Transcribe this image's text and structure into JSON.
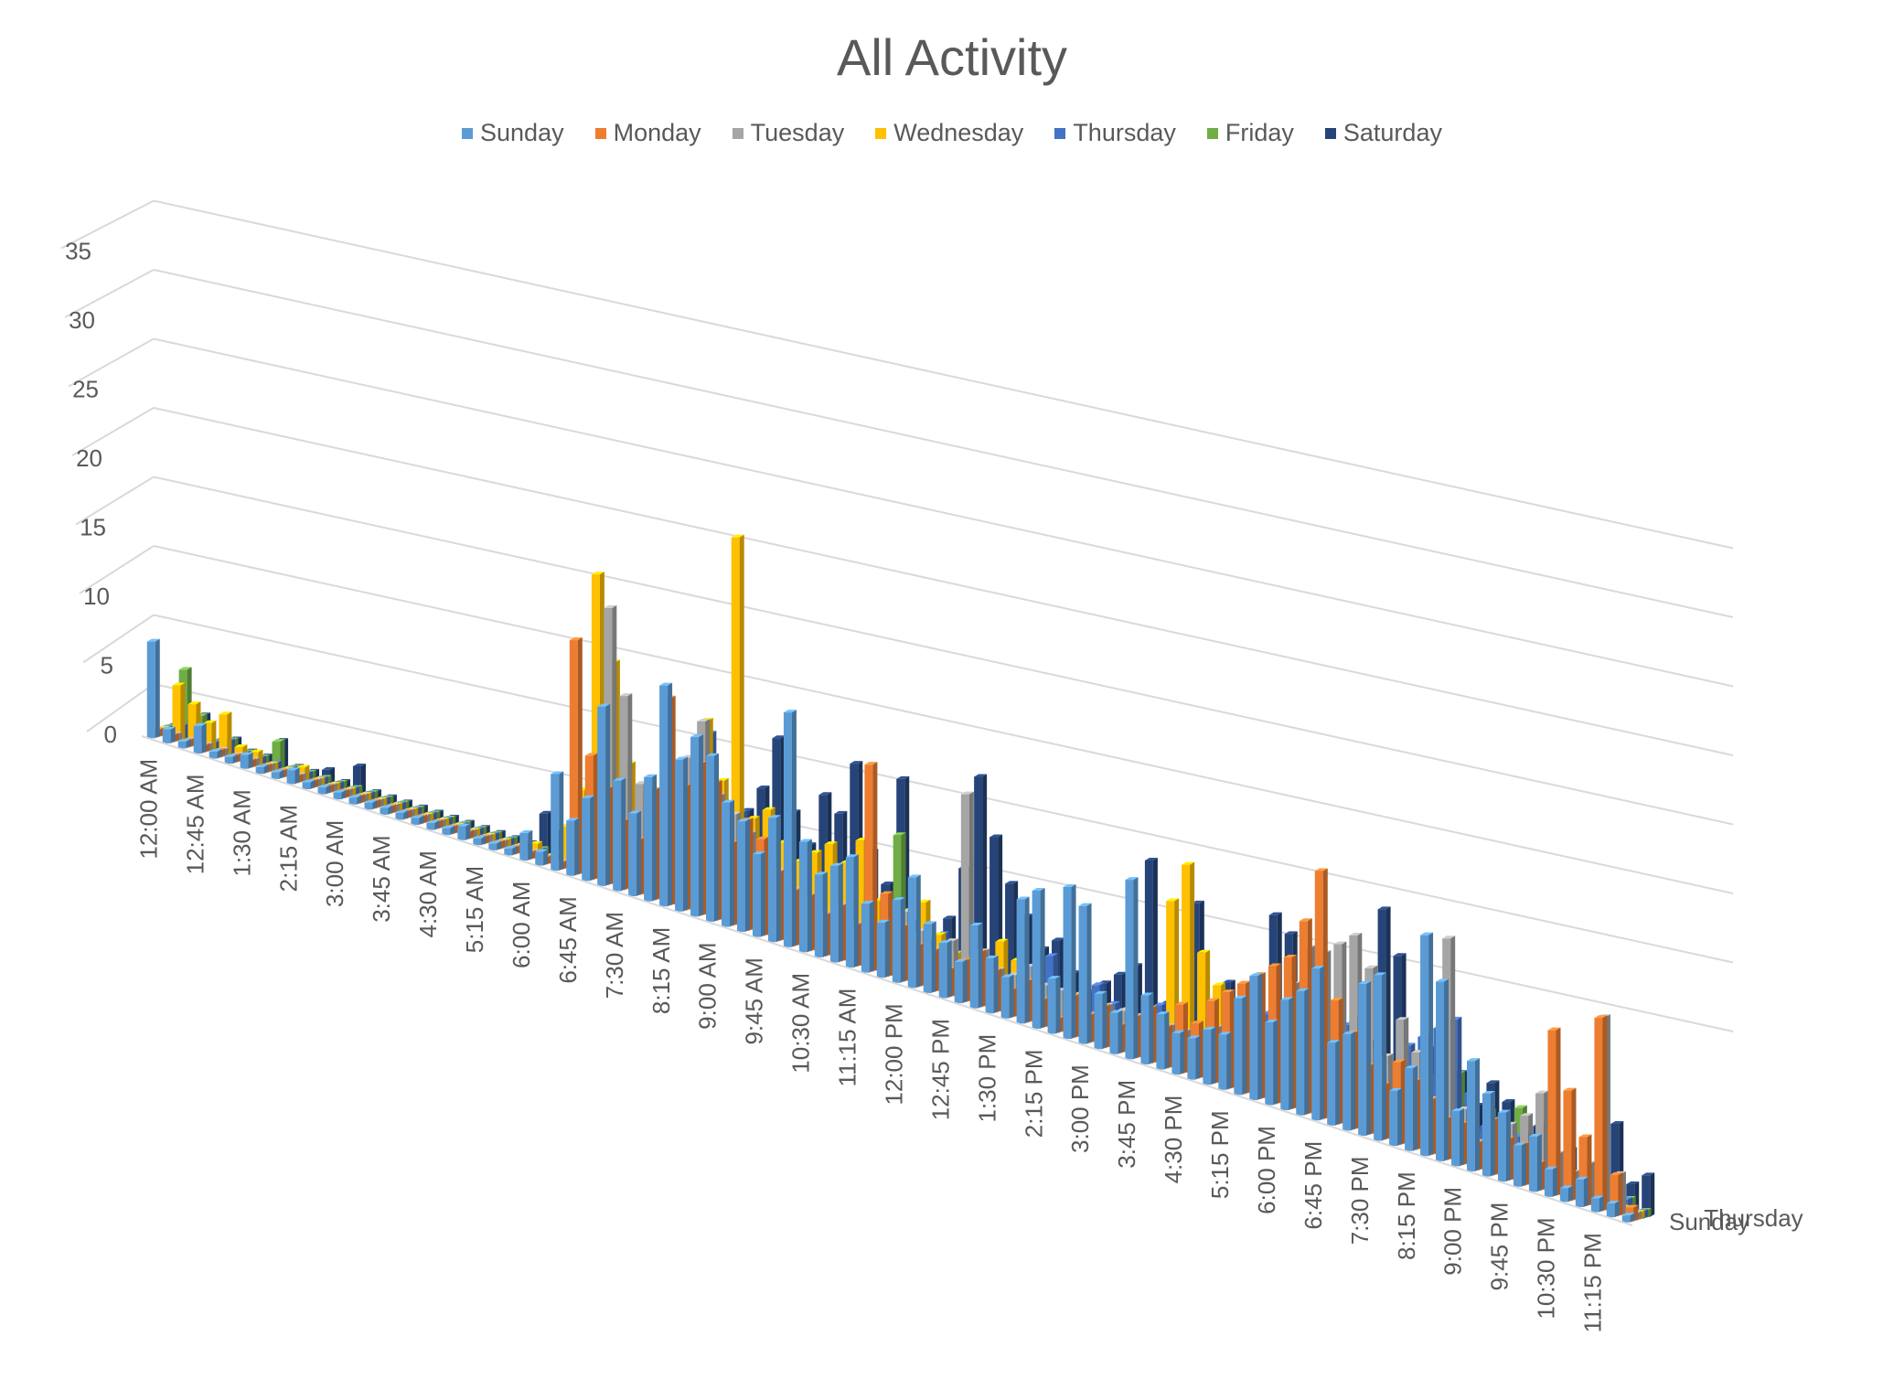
{
  "chart_data": {
    "type": "bar",
    "title": "All Activity",
    "xlabel": "",
    "ylabel": "",
    "ylim": [
      0,
      35
    ],
    "yticks": [
      0,
      5,
      10,
      15,
      20,
      25,
      30,
      35
    ],
    "grid": true,
    "legend_position": "top",
    "depth_axis_labels": [
      "Sunday",
      "Thursday"
    ],
    "x_tick_labels": [
      "12:00 AM",
      "12:45 AM",
      "1:30 AM",
      "2:15 AM",
      "3:00 AM",
      "3:45 AM",
      "4:30 AM",
      "5:15 AM",
      "6:00 AM",
      "6:45 AM",
      "7:30 AM",
      "8:15 AM",
      "9:00 AM",
      "9:45 AM",
      "10:30 AM",
      "11:15 AM",
      "12:00 PM",
      "12:45 PM",
      "1:30 PM",
      "2:15 PM",
      "3:00 PM",
      "3:45 PM",
      "4:30 PM",
      "5:15 PM",
      "6:00 PM",
      "6:45 PM",
      "7:30 PM",
      "8:15 PM",
      "9:00 PM",
      "9:45 PM",
      "10:30 PM",
      "11:15 PM"
    ],
    "categories": [
      "12:00 AM",
      "12:15 AM",
      "12:30 AM",
      "12:45 AM",
      "1:00 AM",
      "1:15 AM",
      "1:30 AM",
      "1:45 AM",
      "2:00 AM",
      "2:15 AM",
      "2:30 AM",
      "2:45 AM",
      "3:00 AM",
      "3:15 AM",
      "3:30 AM",
      "3:45 AM",
      "4:00 AM",
      "4:15 AM",
      "4:30 AM",
      "4:45 AM",
      "5:00 AM",
      "5:15 AM",
      "5:30 AM",
      "5:45 AM",
      "6:00 AM",
      "6:15 AM",
      "6:30 AM",
      "6:45 AM",
      "7:00 AM",
      "7:15 AM",
      "7:30 AM",
      "7:45 AM",
      "8:00 AM",
      "8:15 AM",
      "8:30 AM",
      "8:45 AM",
      "9:00 AM",
      "9:15 AM",
      "9:30 AM",
      "9:45 AM",
      "10:00 AM",
      "10:15 AM",
      "10:30 AM",
      "10:45 AM",
      "11:00 AM",
      "11:15 AM",
      "11:30 AM",
      "11:45 AM",
      "12:00 PM",
      "12:15 PM",
      "12:30 PM",
      "12:45 PM",
      "1:00 PM",
      "1:15 PM",
      "1:30 PM",
      "1:45 PM",
      "2:00 PM",
      "2:15 PM",
      "2:30 PM",
      "2:45 PM",
      "3:00 PM",
      "3:15 PM",
      "3:30 PM",
      "3:45 PM",
      "4:00 PM",
      "4:15 PM",
      "4:30 PM",
      "4:45 PM",
      "5:00 PM",
      "5:15 PM",
      "5:30 PM",
      "5:45 PM",
      "6:00 PM",
      "6:15 PM",
      "6:30 PM",
      "6:45 PM",
      "7:00 PM",
      "7:15 PM",
      "7:30 PM",
      "7:45 PM",
      "8:00 PM",
      "8:15 PM",
      "8:30 PM",
      "8:45 PM",
      "9:00 PM",
      "9:15 PM",
      "9:30 PM",
      "9:45 PM",
      "10:00 PM",
      "10:15 PM",
      "10:30 PM",
      "10:45 PM",
      "11:00 PM",
      "11:15 PM",
      "11:30 PM",
      "11:45 PM"
    ],
    "series": [
      {
        "name": "Sunday",
        "color": "#5B9BD5",
        "values": [
          7,
          1,
          0,
          2,
          0,
          0,
          1,
          0,
          0,
          1,
          0,
          0,
          0,
          0,
          0,
          0,
          0,
          0,
          0,
          0,
          1,
          0,
          0,
          0,
          2,
          1,
          7,
          4,
          6,
          13,
          8,
          6,
          9,
          16,
          11,
          13,
          12,
          9,
          8,
          6,
          9,
          17,
          8,
          6,
          7,
          8,
          5,
          4,
          6,
          8,
          5,
          4,
          3,
          6,
          4,
          3,
          9,
          10,
          4,
          11,
          10,
          4,
          3,
          13,
          5,
          4,
          3,
          3,
          4,
          4,
          7,
          9,
          6,
          8,
          9,
          11,
          6,
          7,
          11,
          12,
          4,
          6,
          16,
          13,
          4,
          8,
          6,
          5,
          3,
          4,
          2,
          1,
          2,
          1,
          1,
          0
        ]
      },
      {
        "name": "Monday",
        "color": "#ED7D31",
        "values": [
          0,
          0,
          0,
          0,
          0,
          0,
          0,
          0,
          0,
          0,
          0,
          0,
          0,
          0,
          0,
          0,
          0,
          0,
          0,
          0,
          0,
          0,
          0,
          0,
          0,
          0,
          0,
          17,
          9,
          7,
          5,
          4,
          8,
          15,
          9,
          11,
          10,
          6,
          8,
          7,
          5,
          4,
          4,
          3,
          4,
          3,
          15,
          6,
          4,
          3,
          3,
          2,
          3,
          4,
          3,
          2,
          3,
          2,
          1,
          3,
          2,
          3,
          2,
          3,
          4,
          3,
          5,
          4,
          6,
          7,
          8,
          9,
          10,
          11,
          14,
          18,
          9,
          7,
          5,
          4,
          6,
          5,
          4,
          3,
          3,
          2,
          4,
          3,
          3,
          2,
          12,
          8,
          5,
          14,
          3,
          1
        ]
      },
      {
        "name": "Tuesday",
        "color": "#A5A5A5",
        "values": [
          0,
          0,
          0,
          0,
          0,
          0,
          0,
          0,
          0,
          0,
          0,
          0,
          0,
          0,
          0,
          0,
          0,
          0,
          0,
          0,
          0,
          0,
          0,
          0,
          0,
          0,
          0,
          0,
          0,
          20,
          14,
          8,
          7,
          10,
          11,
          14,
          9,
          8,
          7,
          6,
          5,
          4,
          3,
          3,
          4,
          3,
          3,
          3,
          5,
          4,
          3,
          4,
          15,
          4,
          3,
          3,
          4,
          3,
          3,
          3,
          2,
          3,
          3,
          3,
          2,
          3,
          3,
          3,
          4,
          3,
          6,
          5,
          6,
          9,
          12,
          12,
          13,
          14,
          12,
          6,
          9,
          7,
          4,
          16,
          4,
          2,
          3,
          4,
          5,
          7,
          3,
          2,
          3,
          14,
          3,
          0
        ]
      },
      {
        "name": "Wednesday",
        "color": "#FFC000",
        "values": [
          0,
          4,
          3,
          2,
          3,
          1,
          1,
          0,
          0,
          1,
          0,
          0,
          0,
          0,
          0,
          0,
          0,
          0,
          0,
          0,
          0,
          0,
          0,
          0,
          1,
          0,
          3,
          6,
          22,
          16,
          9,
          7,
          7,
          6,
          9,
          14,
          10,
          28,
          8,
          9,
          7,
          6,
          7,
          8,
          7,
          9,
          5,
          4,
          5,
          6,
          4,
          3,
          3,
          2,
          5,
          4,
          3,
          2,
          2,
          3,
          1,
          2,
          3,
          2,
          3,
          12,
          15,
          9,
          7,
          4,
          5,
          3,
          2,
          2,
          3,
          2,
          4,
          3,
          2,
          3,
          2,
          2,
          1,
          1,
          2,
          1,
          0,
          0,
          1,
          0,
          0,
          0,
          0,
          0,
          0,
          0
        ]
      },
      {
        "name": "Thursday",
        "color": "#4472C4",
        "values": [
          0,
          1,
          1,
          0,
          1,
          0,
          0,
          0,
          0,
          0,
          0,
          0,
          0,
          0,
          0,
          0,
          0,
          0,
          0,
          0,
          0,
          0,
          0,
          0,
          0,
          0,
          0,
          3,
          0,
          2,
          4,
          6,
          5,
          9,
          8,
          13,
          7,
          8,
          6,
          5,
          6,
          4,
          3,
          4,
          2,
          3,
          3,
          2,
          3,
          3,
          4,
          3,
          2,
          3,
          2,
          3,
          4,
          5,
          3,
          2,
          4,
          3,
          2,
          3,
          4,
          3,
          3,
          4,
          3,
          2,
          5,
          6,
          7,
          8,
          9,
          8,
          7,
          8,
          6,
          5,
          7,
          8,
          9,
          10,
          5,
          3,
          4,
          3,
          2,
          3,
          2,
          1,
          2,
          1,
          1,
          0
        ]
      },
      {
        "name": "Friday",
        "color": "#70AD47",
        "values": [
          0,
          5,
          2,
          0,
          1,
          0,
          0,
          2,
          0,
          0,
          0,
          0,
          0,
          0,
          0,
          0,
          0,
          0,
          0,
          0,
          0,
          0,
          0,
          0,
          0,
          0,
          0,
          0,
          0,
          0,
          4,
          0,
          0,
          0,
          0,
          0,
          0,
          0,
          0,
          0,
          0,
          0,
          0,
          0,
          0,
          5,
          2,
          10,
          3,
          2,
          1,
          2,
          1,
          2,
          1,
          0,
          1,
          1,
          0,
          1,
          0,
          1,
          0,
          0,
          1,
          0,
          1,
          0,
          1,
          0,
          1,
          0,
          1,
          2,
          1,
          2,
          1,
          0,
          1,
          1,
          2,
          5,
          3,
          6,
          2,
          4,
          3,
          5,
          3,
          2,
          1,
          0,
          2,
          2,
          1,
          0
        ]
      },
      {
        "name": "Saturday",
        "color": "#264478",
        "values": [
          0,
          1,
          2,
          0,
          1,
          0,
          0,
          2,
          0,
          0,
          1,
          0,
          2,
          0,
          0,
          0,
          0,
          0,
          0,
          0,
          0,
          0,
          0,
          0,
          3,
          2,
          3,
          4,
          3,
          6,
          5,
          4,
          4,
          7,
          6,
          5,
          7,
          8,
          10,
          14,
          9,
          7,
          11,
          10,
          14,
          8,
          6,
          14,
          4,
          3,
          5,
          9,
          16,
          12,
          9,
          7,
          5,
          6,
          4,
          3,
          4,
          5,
          6,
          14,
          4,
          3,
          12,
          4,
          7,
          6,
          5,
          13,
          12,
          9,
          6,
          8,
          7,
          6,
          16,
          13,
          5,
          7,
          8,
          6,
          4,
          6,
          5,
          3,
          4,
          2,
          3,
          2,
          3,
          6,
          2,
          3
        ]
      }
    ]
  }
}
